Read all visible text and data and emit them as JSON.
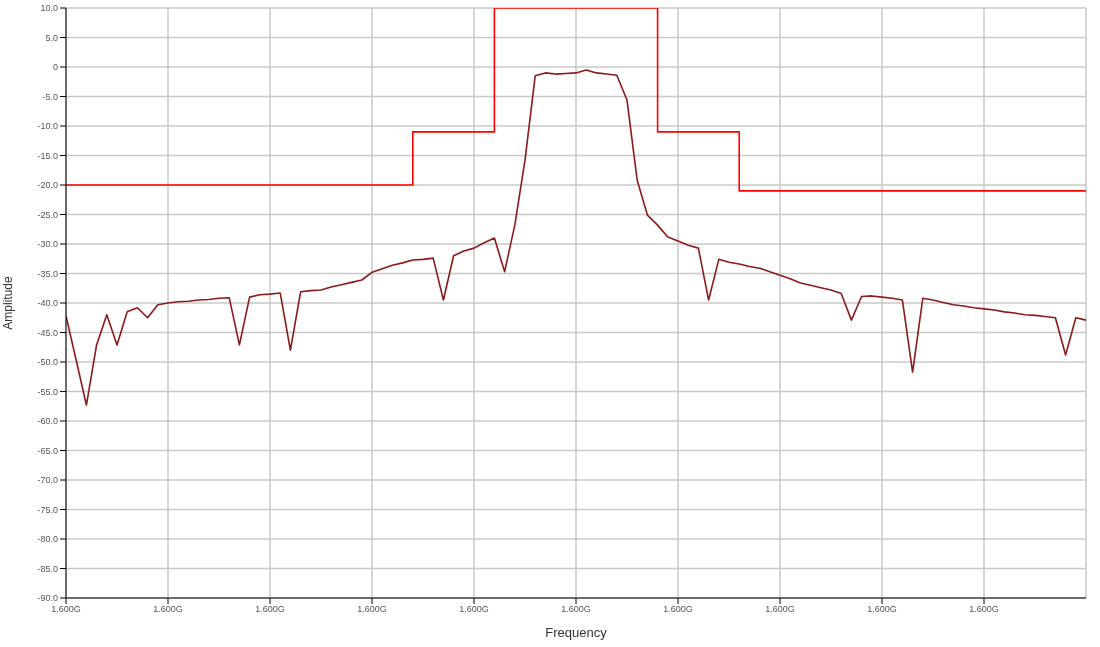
{
  "chart_data": {
    "type": "line",
    "xlabel": "Frequency",
    "ylabel": "Amplitude",
    "categories": [
      "1.600G",
      null,
      null,
      null,
      null,
      null,
      null,
      null,
      null,
      null,
      "1.600G",
      null,
      null,
      null,
      null,
      null,
      null,
      null,
      null,
      null,
      "1.600G",
      null,
      null,
      null,
      null,
      null,
      null,
      null,
      null,
      null,
      "1.600G",
      null,
      null,
      null,
      null,
      null,
      null,
      null,
      null,
      null,
      "1.600G",
      null,
      null,
      null,
      null,
      null,
      null,
      null,
      null,
      null,
      "1.600G",
      null,
      null,
      null,
      null,
      null,
      null,
      null,
      null,
      null,
      "1.600G",
      null,
      null,
      null,
      null,
      null,
      null,
      null,
      null,
      null,
      "1.600G",
      null,
      null,
      null,
      null,
      null,
      null,
      null,
      null,
      null,
      "1.600G",
      null,
      null,
      null,
      null,
      null,
      null,
      null,
      null,
      null,
      "1.600G",
      null,
      null,
      null,
      null,
      null,
      null,
      null,
      null,
      null,
      null
    ],
    "ylim": [
      -90,
      10
    ],
    "yticks": [
      {
        "value": 10,
        "label": "10.0"
      },
      {
        "value": 5,
        "label": "5.0"
      },
      0,
      {
        "value": -5,
        "label": "-5.0"
      },
      {
        "value": -10,
        "label": "-10.0"
      },
      {
        "value": -15,
        "label": "-15.0"
      },
      {
        "value": -20,
        "label": "-20.0"
      },
      {
        "value": -25,
        "label": "-25.0"
      },
      {
        "value": -30,
        "label": "-30.0"
      },
      {
        "value": -35,
        "label": "-35.0"
      },
      {
        "value": -40,
        "label": "-40.0"
      },
      {
        "value": -45,
        "label": "-45.0"
      },
      {
        "value": -50,
        "label": "-50.0"
      },
      {
        "value": -55,
        "label": "-55.0"
      },
      {
        "value": -60,
        "label": "-60.0"
      },
      {
        "value": -65,
        "label": "-65.0"
      },
      {
        "value": -70,
        "label": "-70.0"
      },
      {
        "value": -75,
        "label": "-75.0"
      },
      {
        "value": -80,
        "label": "-80.0"
      },
      {
        "value": -85,
        "label": "-85.0"
      },
      {
        "value": -90,
        "label": "-90.0"
      }
    ],
    "grid": true,
    "marker": "none",
    "line_style": "solid",
    "series": [
      {
        "color": "#8b1a1a",
        "values": [
          -42.2,
          -49.7,
          -57.3,
          -47.1,
          -42.0,
          -47.1,
          -41.5,
          -40.8,
          -42.5,
          -40.3,
          -40.0,
          -39.8,
          -39.7,
          -39.5,
          -39.4,
          -39.2,
          -39.1,
          -47.1,
          -39.0,
          -38.6,
          -38.5,
          -38.3,
          -48.0,
          -38.1,
          -37.9,
          -37.8,
          -37.3,
          -36.9,
          -36.5,
          -36.1,
          -34.8,
          -34.2,
          -33.6,
          -33.2,
          -32.7,
          -32.6,
          -32.4,
          -39.5,
          -32.0,
          -31.2,
          -30.7,
          -29.8,
          -29.0,
          -34.7,
          -26.8,
          -15.8,
          -1.5,
          -1.0,
          -1.2,
          -1.1,
          -1.0,
          -0.5,
          -1.0,
          -1.2,
          -1.4,
          -5.6,
          -19.2,
          -25.1,
          -26.8,
          -28.8,
          -29.5,
          -30.2,
          -30.7,
          -39.5,
          -32.6,
          -33.1,
          -33.4,
          -33.8,
          -34.1,
          -34.7,
          -35.3,
          -35.9,
          -36.6,
          -37.0,
          -37.4,
          -37.8,
          -38.4,
          -42.9,
          -38.9,
          -38.8,
          -39.0,
          -39.2,
          -39.5,
          -51.7,
          -39.2,
          -39.5,
          -39.9,
          -40.3,
          -40.5,
          -40.8,
          -41.0,
          -41.2,
          -41.5,
          -41.7,
          -42.0,
          -42.1,
          -42.3,
          -42.5,
          -48.8,
          -42.5,
          -42.9
        ]
      },
      {
        "type": "step",
        "color": "#ff0000",
        "values": [
          -20,
          -20,
          -20,
          -20,
          -20,
          -20,
          -20,
          -20,
          -20,
          -20,
          -20,
          -20,
          -20,
          -20,
          -20,
          -20,
          -20,
          -20,
          -20,
          -20,
          -20,
          -20,
          -20,
          -20,
          -20,
          -20,
          -20,
          -20,
          -20,
          -20,
          -20,
          -20,
          -20,
          -20,
          -11,
          -11,
          -11,
          -11,
          -11,
          -11,
          -11,
          -11,
          10,
          10,
          10,
          10,
          10,
          10,
          10,
          10,
          10,
          10,
          10,
          10,
          10,
          10,
          10,
          10,
          -11,
          -11,
          -11,
          -11,
          -11,
          -11,
          -11,
          -11,
          -21,
          -21,
          -21,
          -21,
          -21,
          -21,
          -21,
          -21,
          -21,
          -21,
          -21,
          -21,
          -21,
          -21,
          -21,
          -21,
          -21,
          -21,
          -21,
          -21,
          -21,
          -21,
          -21,
          -21,
          -21,
          -21,
          -21,
          -21,
          -21,
          -21,
          -21,
          -21,
          -21,
          -21,
          -21
        ]
      }
    ]
  }
}
